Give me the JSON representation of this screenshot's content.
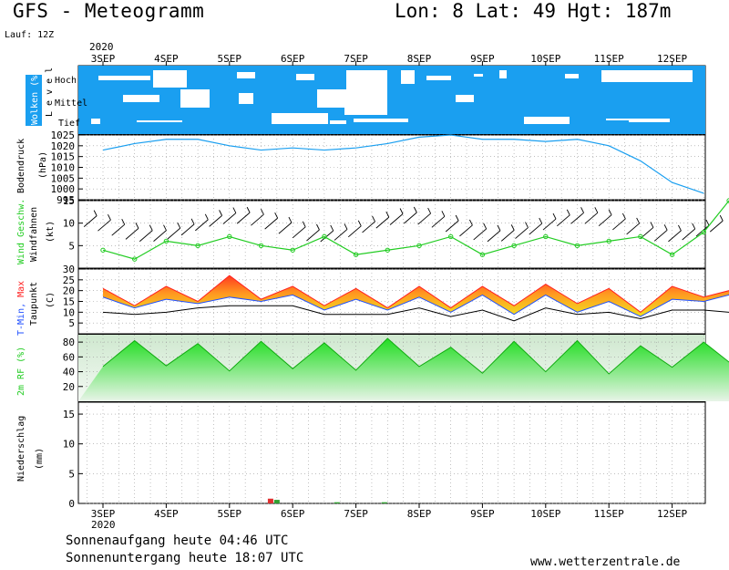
{
  "header": {
    "title": "GFS - Meteogramm",
    "coords": "Lon: 8 Lat: 49 Hgt: 187m",
    "run": "Lauf: 12Z",
    "year": "2020"
  },
  "footer": {
    "sunrise": "Sonnenaufgang heute 04:46 UTC",
    "sunset": "Sonnenuntergang heute 18:07 UTC",
    "source": "www.wetterzentrale.de"
  },
  "x_axis": {
    "days": [
      "3SEP",
      "4SEP",
      "5SEP",
      "6SEP",
      "7SEP",
      "8SEP",
      "9SEP",
      "10SEP",
      "11SEP",
      "12SEP"
    ]
  },
  "panels": {
    "clouds": {
      "label": "Wolken (%)",
      "level_label": "L e v e l",
      "levels": [
        "Hoch",
        "Mittel",
        "Tief"
      ],
      "colors": {
        "cover": "#1a9ff0",
        "clear": "#ffffff"
      }
    },
    "pressure": {
      "label_top": "Bodendruck",
      "label_bottom": "(hPa)",
      "color": "#1a9ff0"
    },
    "wind": {
      "label_top_green": "Wind Geschw.",
      "label_mid": "Windfahnen",
      "label_bottom": "(kt)",
      "color": "#22cc22"
    },
    "temp": {
      "label_min": "T-Min,",
      "label_max": "Max",
      "label_taupunkt": "Taupunkt",
      "label_unit": "(C)",
      "colors": {
        "min": "#2050ff",
        "max": "#ff2020",
        "dew": "#000000"
      }
    },
    "rh": {
      "label": "2m RF (%)",
      "color": "#22cc22"
    },
    "precip": {
      "label_top": "Niederschlag",
      "label_bottom": "(mm)"
    }
  },
  "chart_data": [
    {
      "type": "area",
      "title": "Wolken (%)",
      "levels": [
        "Hoch",
        "Mittel",
        "Tief"
      ],
      "note": "cloud cover strips for high, middle and low levels"
    },
    {
      "type": "line",
      "title": "Bodendruck (hPa)",
      "ylim": [
        995,
        1025
      ],
      "yticks": [
        995,
        1000,
        1005,
        1010,
        1015,
        1020,
        1025
      ],
      "x_days": [
        0,
        0.5,
        1,
        1.5,
        2,
        2.5,
        3,
        3.5,
        4,
        4.5,
        5,
        5.5,
        6,
        6.5,
        7,
        7.5,
        8,
        8.5,
        9,
        9.5
      ],
      "values": [
        1018,
        1021,
        1023,
        1023,
        1020,
        1018,
        1019,
        1018,
        1019,
        1021,
        1024,
        1025,
        1023,
        1023,
        1022,
        1023,
        1020,
        1013,
        1003,
        998
      ]
    },
    {
      "type": "line",
      "title": "Wind Geschw. (kt)",
      "ylim": [
        0,
        15
      ],
      "yticks": [
        5,
        10,
        15
      ],
      "x_days": [
        0,
        0.5,
        1,
        1.5,
        2,
        2.5,
        3,
        3.5,
        4,
        4.5,
        5,
        5.5,
        6,
        6.5,
        7,
        7.5,
        8,
        8.5,
        9,
        9.5,
        9.9
      ],
      "values": [
        4,
        2,
        6,
        5,
        7,
        5,
        4,
        7,
        3,
        4,
        5,
        7,
        3,
        5,
        7,
        5,
        6,
        7,
        3,
        8,
        15
      ]
    },
    {
      "type": "area",
      "title": "T-Min, Max Taupunkt (C)",
      "ylim": [
        0,
        30
      ],
      "yticks": [
        5,
        10,
        15,
        20,
        25,
        30
      ],
      "x_days": [
        0,
        0.5,
        1,
        1.5,
        2,
        2.5,
        3,
        3.5,
        4,
        4.5,
        5,
        5.5,
        6,
        6.5,
        7,
        7.5,
        8,
        8.5,
        9,
        9.5,
        9.9
      ],
      "series": [
        {
          "name": "T-Max",
          "values": [
            21,
            13,
            22,
            15,
            27,
            16,
            22,
            13,
            21,
            12,
            22,
            12,
            22,
            13,
            23,
            14,
            21,
            10,
            22,
            17,
            20
          ]
        },
        {
          "name": "T-Min",
          "values": [
            17,
            12,
            16,
            14,
            17,
            15,
            18,
            11,
            16,
            11,
            17,
            10,
            18,
            9,
            18,
            10,
            15,
            8,
            16,
            15,
            18
          ]
        },
        {
          "name": "Taupunkt",
          "values": [
            10,
            9,
            10,
            12,
            13,
            13,
            13,
            9,
            9,
            9,
            12,
            8,
            11,
            6,
            12,
            9,
            10,
            7,
            11,
            11,
            10
          ]
        }
      ]
    },
    {
      "type": "area",
      "title": "2m RF (%)",
      "ylim": [
        0,
        90
      ],
      "yticks": [
        20,
        40,
        60,
        80
      ],
      "x_days": [
        0,
        0.5,
        1,
        1.5,
        2,
        2.5,
        3,
        3.5,
        4,
        4.5,
        5,
        5.5,
        6,
        6.5,
        7,
        7.5,
        8,
        8.5,
        9,
        9.5,
        9.9
      ],
      "values": [
        47,
        82,
        48,
        78,
        41,
        81,
        44,
        79,
        42,
        85,
        47,
        73,
        38,
        81,
        40,
        82,
        37,
        75,
        46,
        80,
        53
      ]
    },
    {
      "type": "bar",
      "title": "Niederschlag (mm)",
      "ylim": [
        0,
        17
      ],
      "yticks": [
        0,
        5,
        10,
        15
      ],
      "x_days": [
        2.65,
        2.75,
        3.7,
        4.45
      ],
      "values": [
        0.8,
        0.6,
        0.2,
        0.2
      ]
    }
  ]
}
